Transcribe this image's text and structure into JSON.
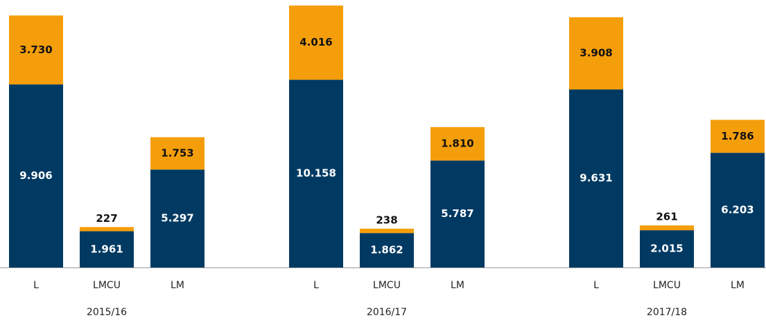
{
  "chart_data": {
    "type": "stacked_bar",
    "categories": [
      "L",
      "LMCU",
      "LM",
      "L",
      "LMCU",
      "LM",
      "L",
      "LMCU",
      "LM"
    ],
    "group_labels": [
      "2015/16",
      "2016/17",
      "2017/18"
    ],
    "series": [
      {
        "color": "#003a63",
        "values": [
          9906,
          1961,
          5297,
          10158,
          1862,
          5787,
          9631,
          2015,
          6203
        ],
        "value_labels": [
          "9.906",
          "1.961",
          "5.297",
          "10.158",
          "1.862",
          "5.787",
          "9.631",
          "2.015",
          "6.203"
        ]
      },
      {
        "color": "#f59e0b",
        "values": [
          3730,
          227,
          1753,
          4016,
          238,
          1810,
          3908,
          261,
          1786
        ],
        "value_labels": [
          "3.730",
          "227",
          "1.753",
          "4.016",
          "238",
          "1.810",
          "3.908",
          "261",
          "1.786"
        ]
      }
    ]
  }
}
